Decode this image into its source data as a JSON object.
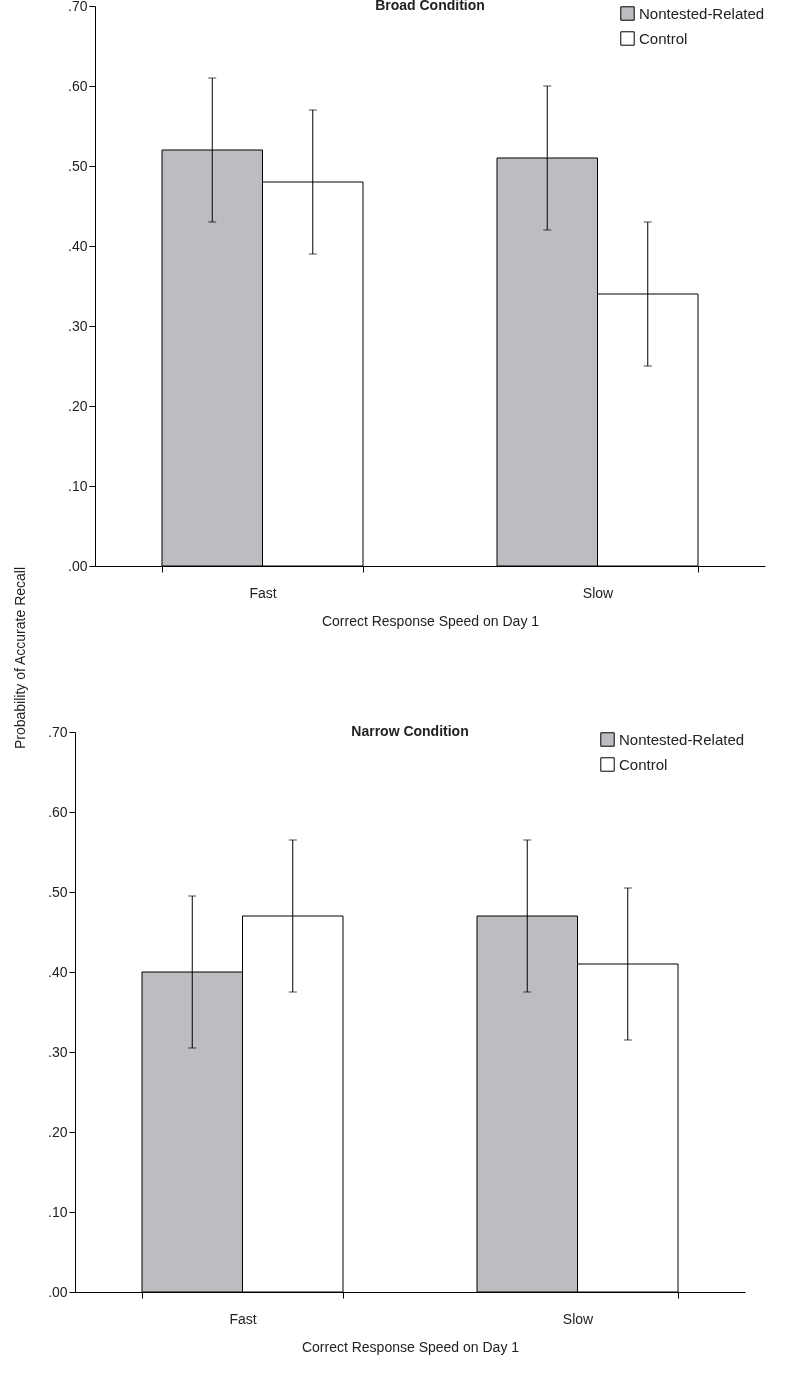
{
  "chart_data": [
    {
      "type": "bar",
      "title": "Broad Condition",
      "xlabel": "Correct Response Speed on Day 1",
      "ylabel": "Probability of Accurate Recall",
      "categories": [
        "Fast",
        "Slow"
      ],
      "series": [
        {
          "name": "Nontested-Related",
          "color": "#bcbdc1",
          "values": [
            0.52,
            0.51
          ],
          "errors": [
            0.09,
            0.09
          ]
        },
        {
          "name": "Control",
          "color": "#ffffff",
          "values": [
            0.48,
            0.34
          ],
          "errors": [
            0.09,
            0.09
          ]
        }
      ],
      "ylim": [
        0,
        0.7
      ],
      "yticks": [
        {
          "value": 0,
          "label": ".00"
        },
        {
          "value": 0.1,
          "label": ".10"
        },
        {
          "value": 0.2,
          "label": ".20"
        },
        {
          "value": 0.3,
          "label": ".30"
        },
        {
          "value": 0.4,
          "label": ".40"
        },
        {
          "value": 0.5,
          "label": ".50"
        },
        {
          "value": 0.6,
          "label": ".60"
        },
        {
          "value": 0.7,
          "label": ".70"
        }
      ],
      "legend": "top right"
    },
    {
      "type": "bar",
      "title": "Narrow Condition",
      "xlabel": "Correct Response Speed on Day 1",
      "categories": [
        "Fast",
        "Slow"
      ],
      "series": [
        {
          "name": "Nontested-Related",
          "color": "#bcbdc1",
          "values": [
            0.4,
            0.47
          ],
          "errors": [
            0.095,
            0.095
          ]
        },
        {
          "name": "Control",
          "color": "#ffffff",
          "values": [
            0.47,
            0.41
          ],
          "errors": [
            0.095,
            0.095
          ]
        }
      ],
      "ylim": [
        0,
        0.7
      ],
      "yticks": [
        {
          "value": 0,
          "label": ".00"
        },
        {
          "value": 0.1,
          "label": ".10"
        },
        {
          "value": 0.2,
          "label": ".20"
        },
        {
          "value": 0.3,
          "label": ".30"
        },
        {
          "value": 0.4,
          "label": ".40"
        },
        {
          "value": 0.5,
          "label": ".50"
        },
        {
          "value": 0.6,
          "label": ".60"
        },
        {
          "value": 0.7,
          "label": ".70"
        }
      ],
      "legend": "top right"
    }
  ]
}
